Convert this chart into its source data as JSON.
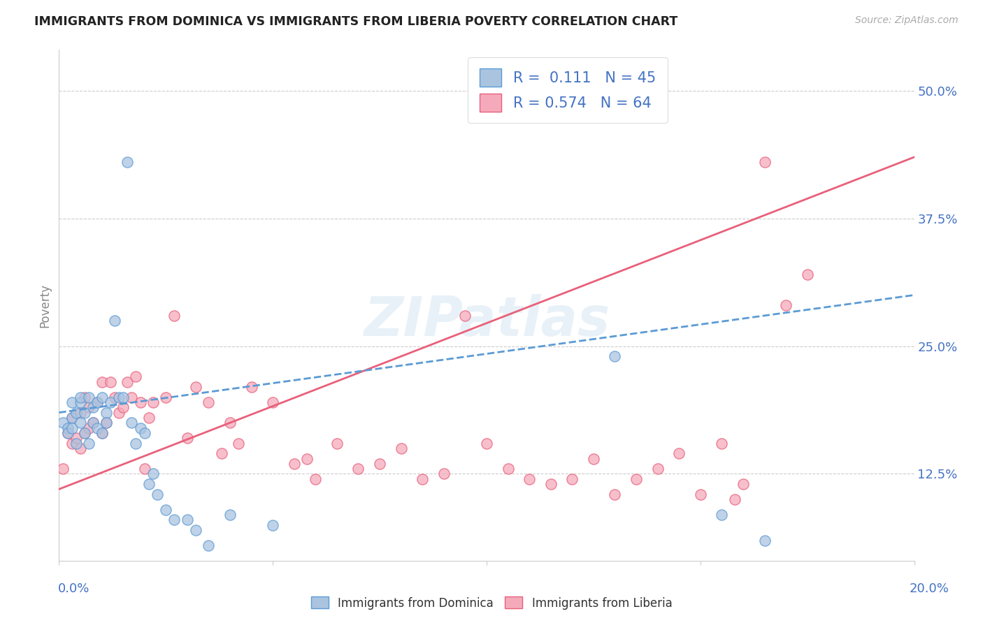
{
  "title": "IMMIGRANTS FROM DOMINICA VS IMMIGRANTS FROM LIBERIA POVERTY CORRELATION CHART",
  "source": "Source: ZipAtlas.com",
  "ylabel": "Poverty",
  "ytick_labels": [
    "12.5%",
    "25.0%",
    "37.5%",
    "50.0%"
  ],
  "ytick_positions": [
    0.125,
    0.25,
    0.375,
    0.5
  ],
  "xtick_labels": [
    "0.0%",
    "20.0%"
  ],
  "xtick_positions": [
    0.0,
    0.2
  ],
  "xmin": 0.0,
  "xmax": 0.2,
  "ymin": 0.04,
  "ymax": 0.54,
  "dominica_color": "#aac4e0",
  "liberia_color": "#f5aabb",
  "dominica_edge_color": "#5b9bd5",
  "liberia_edge_color": "#e8607a",
  "dominica_line_color": "#5b9bd5",
  "liberia_line_color": "#e8607a",
  "dominica_R": 0.111,
  "dominica_N": 45,
  "liberia_R": 0.574,
  "liberia_N": 64,
  "watermark": "ZIPatlas",
  "legend_text_color": "#4472c4",
  "dominica_scatter_x": [
    0.001,
    0.002,
    0.002,
    0.003,
    0.003,
    0.003,
    0.004,
    0.004,
    0.005,
    0.005,
    0.005,
    0.006,
    0.006,
    0.007,
    0.007,
    0.008,
    0.008,
    0.009,
    0.009,
    0.01,
    0.01,
    0.011,
    0.011,
    0.012,
    0.013,
    0.014,
    0.015,
    0.016,
    0.017,
    0.018,
    0.019,
    0.02,
    0.021,
    0.022,
    0.023,
    0.025,
    0.027,
    0.03,
    0.032,
    0.035,
    0.04,
    0.05,
    0.13,
    0.155,
    0.165
  ],
  "dominica_scatter_y": [
    0.175,
    0.17,
    0.165,
    0.195,
    0.18,
    0.17,
    0.185,
    0.155,
    0.195,
    0.2,
    0.175,
    0.185,
    0.165,
    0.2,
    0.155,
    0.19,
    0.175,
    0.195,
    0.17,
    0.2,
    0.165,
    0.185,
    0.175,
    0.195,
    0.275,
    0.2,
    0.2,
    0.43,
    0.175,
    0.155,
    0.17,
    0.165,
    0.115,
    0.125,
    0.105,
    0.09,
    0.08,
    0.08,
    0.07,
    0.055,
    0.085,
    0.075,
    0.24,
    0.085,
    0.06
  ],
  "liberia_scatter_x": [
    0.001,
    0.002,
    0.003,
    0.003,
    0.004,
    0.005,
    0.005,
    0.006,
    0.006,
    0.007,
    0.007,
    0.008,
    0.009,
    0.01,
    0.01,
    0.011,
    0.012,
    0.013,
    0.014,
    0.015,
    0.016,
    0.017,
    0.018,
    0.019,
    0.02,
    0.021,
    0.022,
    0.025,
    0.027,
    0.03,
    0.032,
    0.035,
    0.038,
    0.04,
    0.042,
    0.045,
    0.05,
    0.055,
    0.058,
    0.06,
    0.065,
    0.07,
    0.075,
    0.08,
    0.085,
    0.09,
    0.095,
    0.1,
    0.105,
    0.11,
    0.115,
    0.12,
    0.125,
    0.13,
    0.135,
    0.14,
    0.145,
    0.15,
    0.155,
    0.158,
    0.16,
    0.165,
    0.17,
    0.175
  ],
  "liberia_scatter_y": [
    0.13,
    0.165,
    0.155,
    0.18,
    0.16,
    0.15,
    0.185,
    0.165,
    0.2,
    0.17,
    0.19,
    0.175,
    0.195,
    0.165,
    0.215,
    0.175,
    0.215,
    0.2,
    0.185,
    0.19,
    0.215,
    0.2,
    0.22,
    0.195,
    0.13,
    0.18,
    0.195,
    0.2,
    0.28,
    0.16,
    0.21,
    0.195,
    0.145,
    0.175,
    0.155,
    0.21,
    0.195,
    0.135,
    0.14,
    0.12,
    0.155,
    0.13,
    0.135,
    0.15,
    0.12,
    0.125,
    0.28,
    0.155,
    0.13,
    0.12,
    0.115,
    0.12,
    0.14,
    0.105,
    0.12,
    0.13,
    0.145,
    0.105,
    0.155,
    0.1,
    0.115,
    0.43,
    0.29,
    0.32
  ]
}
